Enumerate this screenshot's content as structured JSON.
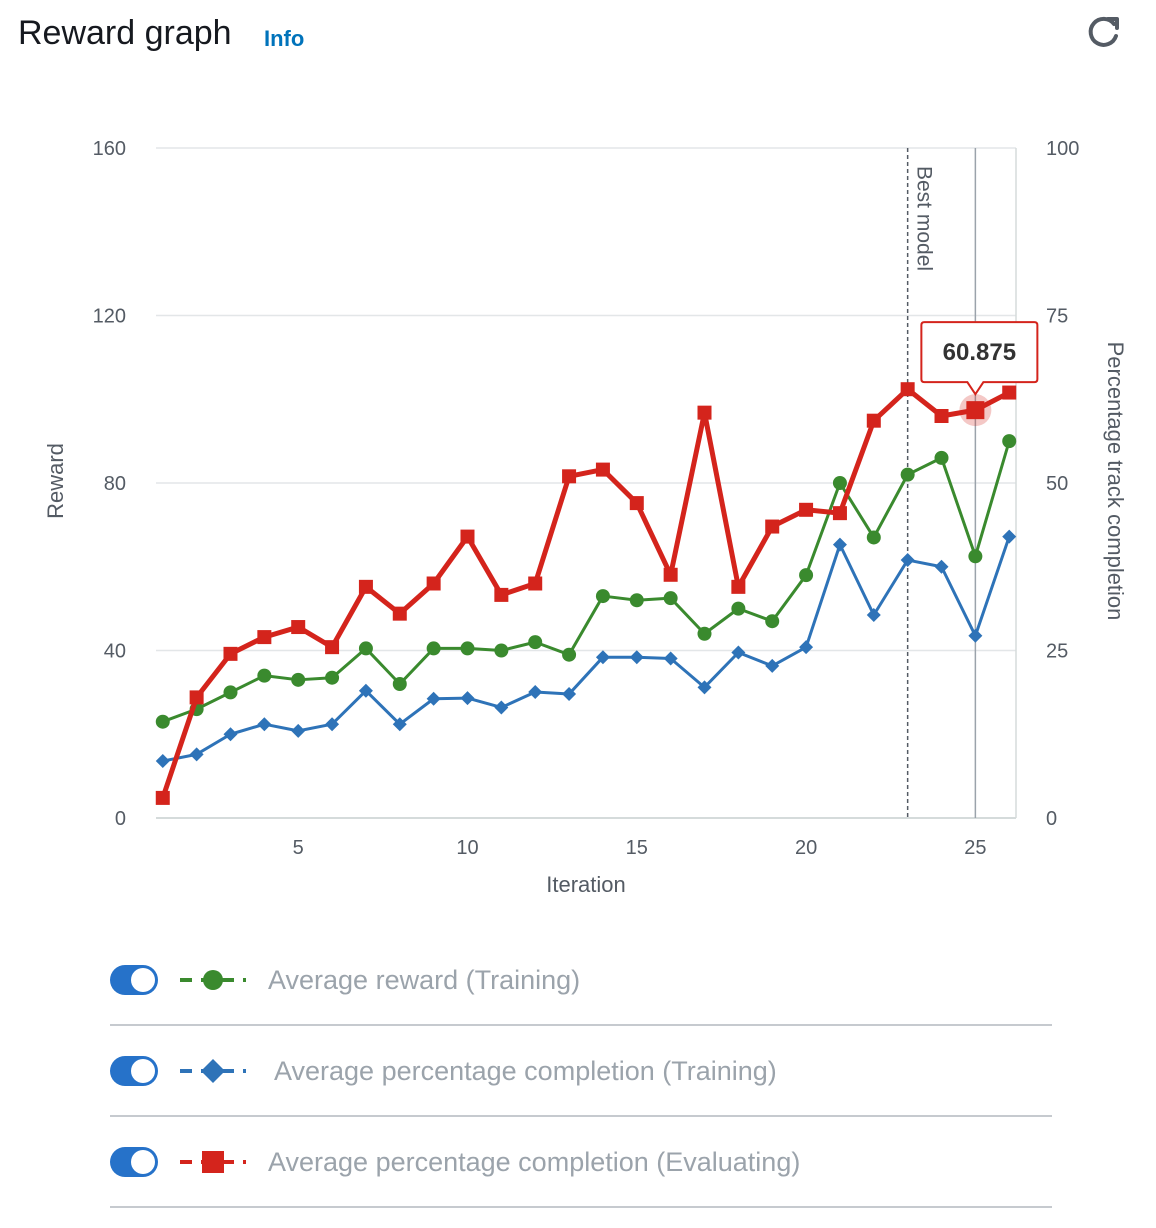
{
  "header": {
    "title": "Reward graph",
    "info_label": "Info"
  },
  "tooltip": {
    "value": "60.875",
    "iteration": 25
  },
  "annotation": {
    "label": "Best model",
    "iteration": 23
  },
  "legend": [
    {
      "label": "Average reward (Training)",
      "enabled": true
    },
    {
      "label": "Average percentage completion (Training)",
      "enabled": true
    },
    {
      "label": "Average percentage completion (Evaluating)",
      "enabled": true
    }
  ],
  "chart_data": {
    "type": "line",
    "xlabel": "Iteration",
    "ylabel_left": "Reward",
    "ylabel_right": "Percentage track completion",
    "xlim": [
      1,
      26
    ],
    "ylim_left": [
      0,
      160
    ],
    "ylim_right": [
      0,
      100
    ],
    "x_ticks": [
      5,
      10,
      15,
      20,
      25
    ],
    "y_ticks_left": [
      0,
      40,
      80,
      120,
      160
    ],
    "y_ticks_right": [
      0,
      25,
      50,
      75,
      100
    ],
    "grid": true,
    "x": [
      1,
      2,
      3,
      4,
      5,
      6,
      7,
      8,
      9,
      10,
      11,
      12,
      13,
      14,
      15,
      16,
      17,
      18,
      19,
      20,
      21,
      22,
      23,
      24,
      25,
      26
    ],
    "series": [
      {
        "name": "Average reward (Training)",
        "axis": "left",
        "color": "#3a8a2e",
        "marker": "circle",
        "values": [
          23,
          26,
          30,
          34,
          33,
          33.5,
          40.5,
          32,
          40.5,
          40.5,
          40,
          42,
          39,
          53,
          52,
          52.5,
          44,
          50,
          47,
          58,
          80,
          67,
          82,
          86,
          62.5,
          90
        ]
      },
      {
        "name": "Average percentage completion (Training)",
        "axis": "right",
        "color": "#2e73b8",
        "marker": "diamond",
        "values": [
          8.5,
          9.5,
          12.5,
          14,
          13,
          14,
          19,
          14,
          17.8,
          17.9,
          16.5,
          18.8,
          18.5,
          24,
          24,
          23.8,
          19.5,
          24.7,
          22.7,
          25.5,
          40.8,
          30.3,
          38.5,
          37.5,
          27.2,
          42
        ]
      },
      {
        "name": "Average percentage completion (Evaluating)",
        "axis": "right",
        "color": "#d4241c",
        "marker": "square",
        "values": [
          3,
          18,
          24.5,
          27,
          28.5,
          25.5,
          34.5,
          30.5,
          35,
          42,
          33.3,
          35,
          51,
          52,
          47,
          36.3,
          60.5,
          34.5,
          43.5,
          46,
          45.5,
          59.3,
          64,
          60,
          60.875,
          63.5
        ]
      }
    ]
  }
}
